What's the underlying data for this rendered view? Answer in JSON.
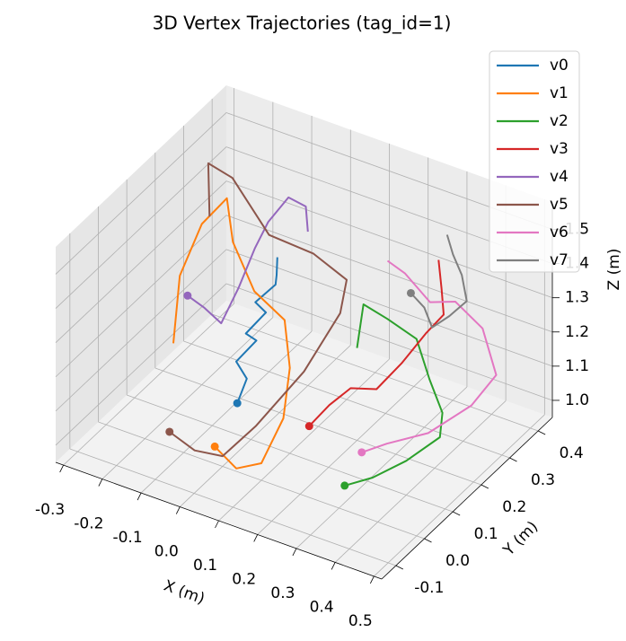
{
  "chart_data": {
    "type": "line3d",
    "title": "3D Vertex Trajectories (tag_id=1)",
    "xlabel": "X (m)",
    "ylabel": "Y (m)",
    "zlabel": "Z (m)",
    "xlim": [
      -0.32,
      0.52
    ],
    "ylim": [
      -0.15,
      0.45
    ],
    "zlim": [
      0.95,
      1.58
    ],
    "xticks": [
      -0.3,
      -0.2,
      -0.1,
      {
        "value": 0,
        "label": "0.0"
      },
      0.1,
      0.2,
      0.3,
      0.4,
      0.5
    ],
    "yticks": [
      -0.1,
      {
        "value": 0,
        "label": "0.0"
      },
      0.1,
      0.2,
      0.3,
      0.4
    ],
    "zticks": [
      {
        "value": 1,
        "label": "1.0"
      },
      1.1,
      1.2,
      1.3,
      1.4,
      1.5
    ],
    "grid": true,
    "legend": "upper right",
    "series": [
      {
        "name": "v0",
        "color": "#1f77b4",
        "x": [
          -0.05,
          -0.04,
          -0.06,
          -0.03,
          -0.05,
          -0.02,
          -0.04,
          -0.01,
          0.0,
          -0.02
        ],
        "y": [
          0.12,
          0.14,
          0.13,
          0.16,
          0.15,
          0.18,
          0.17,
          0.2,
          0.19,
          0.22
        ],
        "z": [
          1.02,
          1.08,
          1.13,
          1.18,
          1.2,
          1.25,
          1.28,
          1.32,
          1.36,
          1.38
        ]
      },
      {
        "name": "v1",
        "color": "#ff7f0e",
        "x": [
          -0.02,
          0.05,
          0.1,
          0.12,
          0.1,
          0.05,
          -0.05,
          -0.12,
          -0.15,
          -0.2,
          -0.22,
          -0.2
        ],
        "y": [
          0.0,
          -0.02,
          0.0,
          0.05,
          0.1,
          0.15,
          0.18,
          0.2,
          0.22,
          0.2,
          0.15,
          0.1
        ],
        "z": [
          1.0,
          0.98,
          1.0,
          1.1,
          1.2,
          1.28,
          1.3,
          1.4,
          1.5,
          1.42,
          1.3,
          1.15
        ]
      },
      {
        "name": "v2",
        "color": "#2ca02c",
        "x": [
          0.3,
          0.35,
          0.4,
          0.45,
          0.42,
          0.35,
          0.28,
          0.22,
          0.18,
          0.2
        ],
        "y": [
          0.02,
          0.05,
          0.1,
          0.15,
          0.2,
          0.25,
          0.3,
          0.28,
          0.25,
          0.2
        ],
        "z": [
          1.0,
          1.02,
          1.05,
          1.1,
          1.12,
          1.15,
          1.2,
          1.25,
          1.3,
          1.22
        ]
      },
      {
        "name": "v3",
        "color": "#d62728",
        "x": [
          0.15,
          0.18,
          0.22,
          0.25,
          0.3,
          0.32,
          0.35,
          0.33,
          0.3
        ],
        "y": [
          0.1,
          0.13,
          0.15,
          0.2,
          0.22,
          0.28,
          0.3,
          0.32,
          0.35
        ],
        "z": [
          1.05,
          1.1,
          1.15,
          1.12,
          1.2,
          1.25,
          1.3,
          1.35,
          1.4
        ]
      },
      {
        "name": "v4",
        "color": "#9467bd",
        "x": [
          -0.2,
          -0.18,
          -0.15,
          -0.12,
          -0.1,
          -0.08,
          -0.05,
          -0.02,
          0.0
        ],
        "y": [
          0.15,
          0.18,
          0.2,
          0.22,
          0.25,
          0.27,
          0.3,
          0.32,
          0.3
        ],
        "z": [
          1.25,
          1.2,
          1.15,
          1.25,
          1.35,
          1.42,
          1.48,
          1.45,
          1.4
        ]
      },
      {
        "name": "v5",
        "color": "#8c564b",
        "x": [
          -0.1,
          -0.05,
          0.0,
          0.05,
          0.1,
          0.12,
          0.1,
          0.0,
          -0.1,
          -0.18,
          -0.22,
          -0.18
        ],
        "y": [
          -0.05,
          -0.03,
          0.0,
          0.05,
          0.15,
          0.25,
          0.3,
          0.32,
          0.3,
          0.28,
          0.25,
          0.2
        ],
        "z": [
          1.05,
          1.0,
          0.98,
          1.05,
          1.15,
          1.25,
          1.3,
          1.32,
          1.35,
          1.5,
          1.55,
          1.45
        ]
      },
      {
        "name": "v6",
        "color": "#e377c2",
        "x": [
          0.3,
          0.35,
          0.42,
          0.48,
          0.5,
          0.45,
          0.38,
          0.3,
          0.25,
          0.22
        ],
        "y": [
          0.08,
          0.1,
          0.15,
          0.22,
          0.28,
          0.3,
          0.3,
          0.32,
          0.3,
          0.28
        ],
        "z": [
          1.05,
          1.08,
          1.1,
          1.15,
          1.2,
          1.3,
          1.35,
          1.3,
          1.38,
          1.42
        ]
      },
      {
        "name": "v7",
        "color": "#7f7f7f",
        "x": [
          0.28,
          0.3,
          0.32,
          0.35,
          0.38,
          0.36,
          0.33,
          0.3
        ],
        "y": [
          0.28,
          0.3,
          0.3,
          0.32,
          0.34,
          0.35,
          0.36,
          0.38
        ],
        "z": [
          1.35,
          1.3,
          1.25,
          1.28,
          1.32,
          1.38,
          1.42,
          1.45
        ]
      }
    ]
  }
}
